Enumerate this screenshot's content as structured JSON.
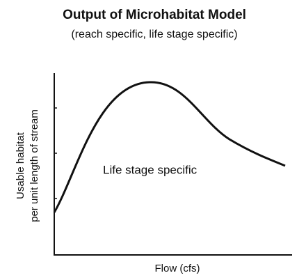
{
  "chart_data": {
    "type": "line",
    "title": "Output of Microhabitat Model",
    "subtitle": "(reach specific, life stage specific)",
    "y_label": [
      "Usable habitat",
      "per unit length of stream"
    ],
    "x_label": "Flow (cfs)",
    "annotation": "Life stage specific"
  }
}
